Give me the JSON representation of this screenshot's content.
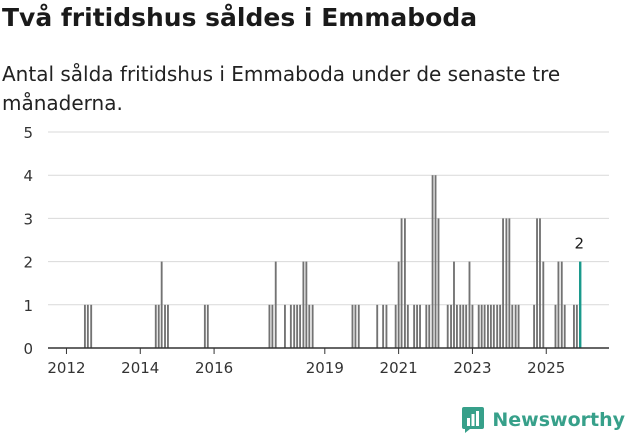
{
  "header": {
    "title": "Två fritidshus såldes i Emmaboda",
    "subtitle": "Antal sålda fritidshus i Emmaboda under de senaste tre månaderna."
  },
  "brand": {
    "name": "Newsworthy",
    "icon": "bar-chart-icon"
  },
  "colors": {
    "bar": "#737373",
    "highlight": "#1a9a8c",
    "grid": "#d9d9d9",
    "axis": "#333333",
    "brand": "#37a08a"
  },
  "chart_data": {
    "type": "bar",
    "title": "Två fritidshus såldes i Emmaboda",
    "subtitle": "Antal sålda fritidshus i Emmaboda under de senaste tre månaderna.",
    "xlabel": "",
    "ylabel": "",
    "xlim": [
      2011.5,
      2026.7
    ],
    "ylim": [
      0,
      5
    ],
    "yticks": [
      0,
      1,
      2,
      3,
      4,
      5
    ],
    "xticks": [
      2012,
      2014,
      2016,
      2019,
      2021,
      2023,
      2025
    ],
    "grid": true,
    "bar_width_years": 0.083,
    "bars": [
      {
        "x": 2012.5,
        "value": 1
      },
      {
        "x": 2012.58,
        "value": 1
      },
      {
        "x": 2012.67,
        "value": 1
      },
      {
        "x": 2014.42,
        "value": 1
      },
      {
        "x": 2014.5,
        "value": 1
      },
      {
        "x": 2014.58,
        "value": 2
      },
      {
        "x": 2014.67,
        "value": 1
      },
      {
        "x": 2014.75,
        "value": 1
      },
      {
        "x": 2015.75,
        "value": 1
      },
      {
        "x": 2015.83,
        "value": 1
      },
      {
        "x": 2017.5,
        "value": 1
      },
      {
        "x": 2017.58,
        "value": 1
      },
      {
        "x": 2017.67,
        "value": 2
      },
      {
        "x": 2017.92,
        "value": 1
      },
      {
        "x": 2018.08,
        "value": 1
      },
      {
        "x": 2018.17,
        "value": 1
      },
      {
        "x": 2018.25,
        "value": 1
      },
      {
        "x": 2018.33,
        "value": 1
      },
      {
        "x": 2018.42,
        "value": 2
      },
      {
        "x": 2018.5,
        "value": 2
      },
      {
        "x": 2018.58,
        "value": 1
      },
      {
        "x": 2018.67,
        "value": 1
      },
      {
        "x": 2019.75,
        "value": 1
      },
      {
        "x": 2019.83,
        "value": 1
      },
      {
        "x": 2019.92,
        "value": 1
      },
      {
        "x": 2020.42,
        "value": 1
      },
      {
        "x": 2020.58,
        "value": 1
      },
      {
        "x": 2020.67,
        "value": 1
      },
      {
        "x": 2020.92,
        "value": 1
      },
      {
        "x": 2021.0,
        "value": 2
      },
      {
        "x": 2021.08,
        "value": 3
      },
      {
        "x": 2021.17,
        "value": 3
      },
      {
        "x": 2021.25,
        "value": 1
      },
      {
        "x": 2021.42,
        "value": 1
      },
      {
        "x": 2021.5,
        "value": 1
      },
      {
        "x": 2021.58,
        "value": 1
      },
      {
        "x": 2021.75,
        "value": 1
      },
      {
        "x": 2021.83,
        "value": 1
      },
      {
        "x": 2021.92,
        "value": 4
      },
      {
        "x": 2022.0,
        "value": 4
      },
      {
        "x": 2022.08,
        "value": 3
      },
      {
        "x": 2022.33,
        "value": 1
      },
      {
        "x": 2022.42,
        "value": 1
      },
      {
        "x": 2022.5,
        "value": 2
      },
      {
        "x": 2022.58,
        "value": 1
      },
      {
        "x": 2022.67,
        "value": 1
      },
      {
        "x": 2022.75,
        "value": 1
      },
      {
        "x": 2022.83,
        "value": 1
      },
      {
        "x": 2022.92,
        "value": 2
      },
      {
        "x": 2023.0,
        "value": 1
      },
      {
        "x": 2023.17,
        "value": 1
      },
      {
        "x": 2023.25,
        "value": 1
      },
      {
        "x": 2023.33,
        "value": 1
      },
      {
        "x": 2023.42,
        "value": 1
      },
      {
        "x": 2023.5,
        "value": 1
      },
      {
        "x": 2023.58,
        "value": 1
      },
      {
        "x": 2023.67,
        "value": 1
      },
      {
        "x": 2023.75,
        "value": 1
      },
      {
        "x": 2023.83,
        "value": 3
      },
      {
        "x": 2023.92,
        "value": 3
      },
      {
        "x": 2024.0,
        "value": 3
      },
      {
        "x": 2024.08,
        "value": 1
      },
      {
        "x": 2024.17,
        "value": 1
      },
      {
        "x": 2024.25,
        "value": 1
      },
      {
        "x": 2024.67,
        "value": 1
      },
      {
        "x": 2024.75,
        "value": 3
      },
      {
        "x": 2024.83,
        "value": 3
      },
      {
        "x": 2024.92,
        "value": 2
      },
      {
        "x": 2025.25,
        "value": 1
      },
      {
        "x": 2025.33,
        "value": 2
      },
      {
        "x": 2025.42,
        "value": 2
      },
      {
        "x": 2025.5,
        "value": 1
      },
      {
        "x": 2025.75,
        "value": 1
      },
      {
        "x": 2025.83,
        "value": 1
      },
      {
        "x": 2025.92,
        "value": 2,
        "highlight": true
      }
    ],
    "annotations": [
      {
        "x": 2025.92,
        "value": 2,
        "text": "2"
      }
    ]
  }
}
